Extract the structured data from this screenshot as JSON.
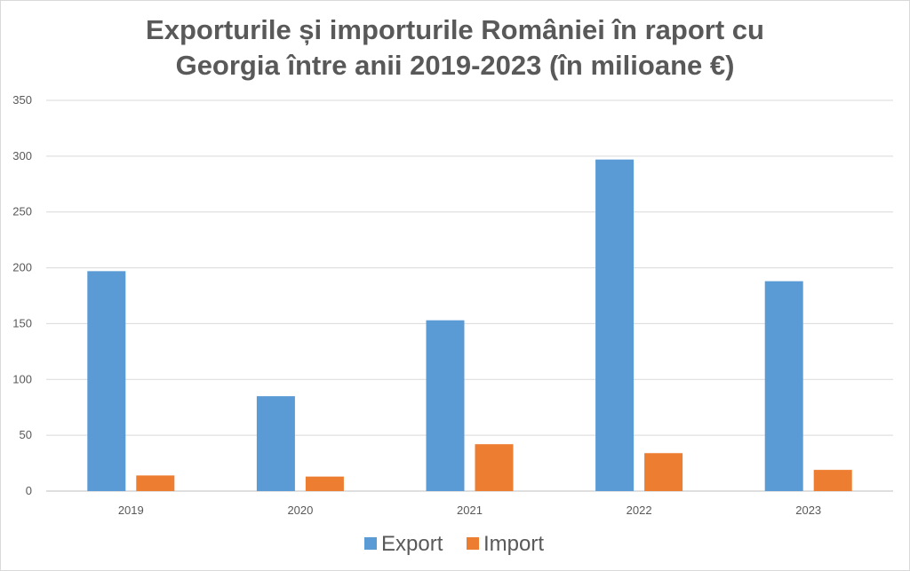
{
  "chart_data": {
    "type": "bar",
    "title_lines": [
      "Exporturile și importurile României în raport cu",
      "Georgia între anii 2019-2023 (în milioane €)"
    ],
    "xlabel": "",
    "ylabel": "",
    "categories": [
      "2019",
      "2020",
      "2021",
      "2022",
      "2023"
    ],
    "series": [
      {
        "name": "Export",
        "color": "#5B9BD5",
        "values": [
          197,
          85,
          153,
          297,
          188
        ]
      },
      {
        "name": "Import",
        "color": "#ED7D31",
        "values": [
          14,
          13,
          42,
          34,
          19
        ]
      }
    ],
    "ylim": [
      0,
      350
    ],
    "yticks": [
      0,
      50,
      100,
      150,
      200,
      250,
      300,
      350
    ],
    "grid": true,
    "legend_position": "bottom"
  }
}
